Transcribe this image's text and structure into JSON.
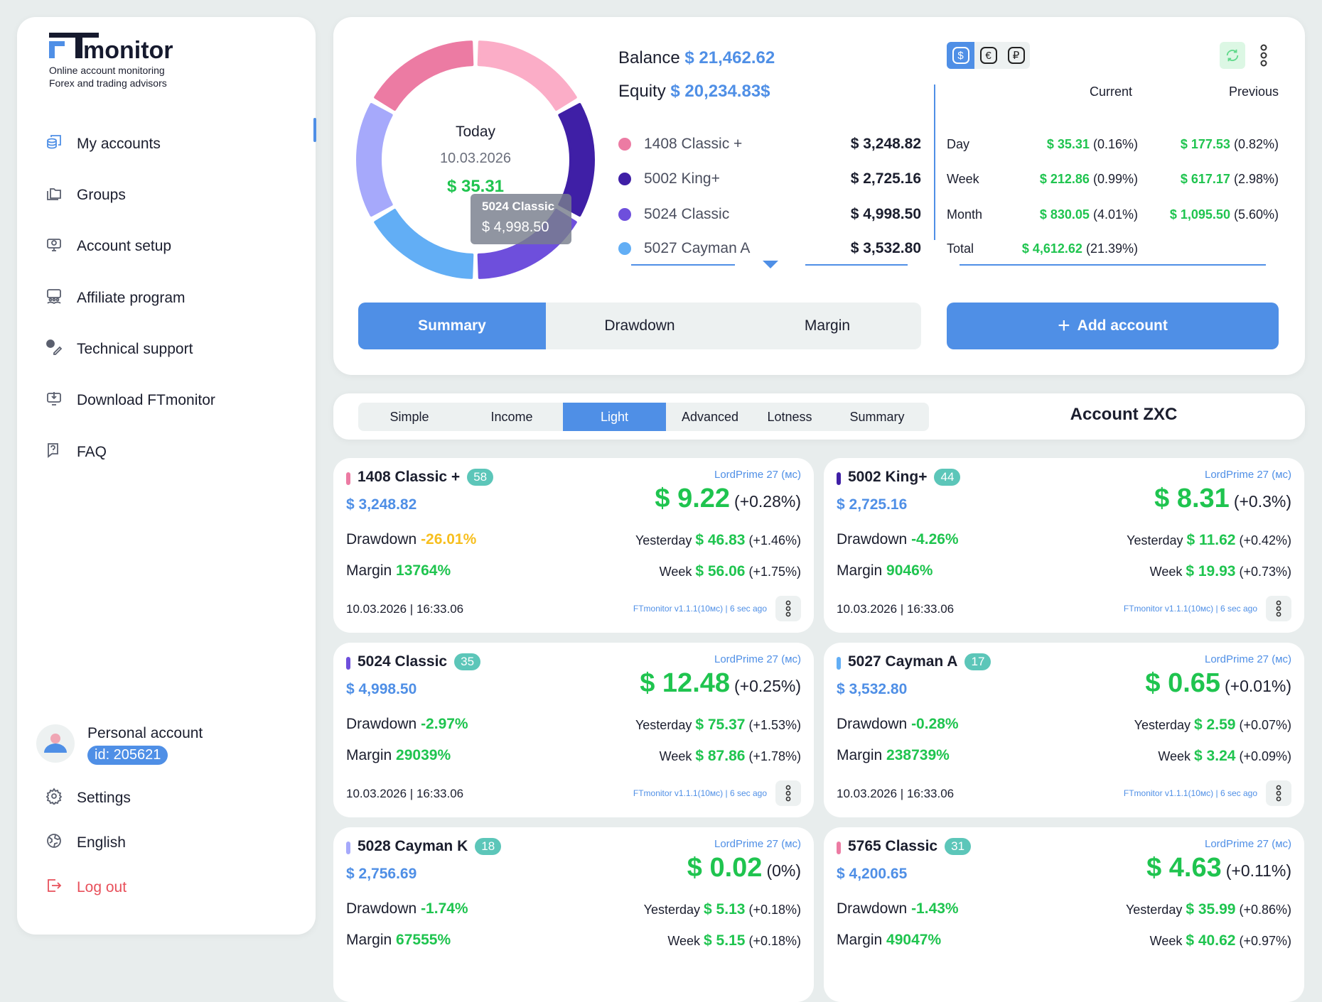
{
  "brand": {
    "name": "FTmonitor",
    "logo_text": "monitor",
    "tagline_1": "Online account monitoring",
    "tagline_2": "Forex and trading advisors"
  },
  "sidebar": {
    "items": [
      {
        "label": "My accounts",
        "icon": "accounts-icon",
        "active": true
      },
      {
        "label": "Groups",
        "icon": "folders-icon"
      },
      {
        "label": "Account setup",
        "icon": "monitor-gear-icon"
      },
      {
        "label": "Affiliate program",
        "icon": "people-icon"
      },
      {
        "label": "Technical support",
        "icon": "support-icon"
      },
      {
        "label": "Download FTmonitor",
        "icon": "download-icon"
      },
      {
        "label": "FAQ",
        "icon": "faq-icon"
      }
    ],
    "account": {
      "name": "Personal account",
      "id": "id: 205621"
    },
    "bottom": [
      {
        "label": "Settings",
        "icon": "gear-icon"
      },
      {
        "label": "English",
        "icon": "globe-icon"
      },
      {
        "label": "Log out",
        "icon": "logout-icon"
      }
    ]
  },
  "summary": {
    "center": {
      "label": "Today",
      "date": "10.03.2026",
      "value": "$ 35.31"
    },
    "donut_colors": [
      "#fbadc7",
      "#3f1fa6",
      "#6e4fdc",
      "#62aef5",
      "#a6a9fb",
      "#ec7ba3"
    ],
    "tooltip": {
      "name": "5024 Classic",
      "value": "$ 4,998.50"
    },
    "balance_label": "Balance",
    "balance": "$ 21,462.62",
    "equity_label": "Equity",
    "equity": "$ 20,234.83$",
    "legend": [
      {
        "name": "1408 Classic +",
        "value": "$ 3,248.82",
        "color": "#ec7ba3"
      },
      {
        "name": "5002 King+",
        "value": "$ 2,725.16",
        "color": "#3f1fa6"
      },
      {
        "name": "5024 Classic",
        "value": "$ 4,998.50",
        "color": "#6e4fdc"
      },
      {
        "name": "5027 Cayman A",
        "value": "$ 3,532.80",
        "color": "#62aef5"
      }
    ],
    "currencies": [
      "$",
      "€",
      "₽"
    ],
    "active_currency": "$",
    "table": {
      "headers": {
        "current": "Current",
        "previous": "Previous"
      },
      "rows": [
        {
          "label": "Day",
          "cur": "$ 35.31",
          "cur_pct": "(0.16%)",
          "prev": "$ 177.53",
          "prev_pct": "(0.82%)"
        },
        {
          "label": "Week",
          "cur": "$ 212.86",
          "cur_pct": "(0.99%)",
          "prev": "$ 617.17",
          "prev_pct": "(2.98%)"
        },
        {
          "label": "Month",
          "cur": "$ 830.05",
          "cur_pct": "(4.01%)",
          "prev": "$ 1,095.50",
          "prev_pct": "(5.60%)"
        },
        {
          "label": "Total",
          "cur": "$ 4,612.62",
          "cur_pct": "(21.39%)",
          "prev": "",
          "prev_pct": ""
        }
      ]
    },
    "segments": [
      "Summary",
      "Drawdown",
      "Margin"
    ],
    "active_segment": "Summary",
    "add_account": "Add account"
  },
  "view_tabs": {
    "items": [
      "Simple",
      "Income",
      "Light",
      "Advanced",
      "Lotness",
      "Summary"
    ],
    "active": "Light",
    "account_title": "Account ZXC"
  },
  "cards": [
    {
      "name": "1408 Classic +",
      "badge": "58",
      "color": "#ec7ba3",
      "balance": "$ 3,248.82",
      "server": "LordPrime 27 (мс)",
      "profit": "$ 9.22",
      "profit_pct": "(+0.28%)",
      "drawdown": "-26.01%",
      "drawdown_color": "#f7bf1f",
      "margin": "13764%",
      "yesterday": "$ 46.83",
      "yesterday_pct": "(+1.46%)",
      "week": "$ 56.06",
      "week_pct": "(+1.75%)",
      "datetime": "10.03.2026 | 16:33.06",
      "version": "FTmonitor v1.1.1(10мс) | 6 sec ago"
    },
    {
      "name": "5002 King+",
      "badge": "44",
      "color": "#3f1fa6",
      "balance": "$ 2,725.16",
      "server": "LordPrime 27 (мс)",
      "profit": "$ 8.31",
      "profit_pct": "(+0.3%)",
      "drawdown": "-4.26%",
      "drawdown_color": "#1fc44f",
      "margin": "9046%",
      "yesterday": "$ 11.62",
      "yesterday_pct": "(+0.42%)",
      "week": "$ 19.93",
      "week_pct": "(+0.73%)",
      "datetime": "10.03.2026 | 16:33.06",
      "version": "FTmonitor v1.1.1(10мс) | 6 sec ago"
    },
    {
      "name": "5024 Classic",
      "badge": "35",
      "color": "#6e4fdc",
      "balance": "$ 4,998.50",
      "server": "LordPrime 27 (мс)",
      "profit": "$ 12.48",
      "profit_pct": "(+0.25%)",
      "drawdown": "-2.97%",
      "drawdown_color": "#1fc44f",
      "margin": "29039%",
      "yesterday": "$ 75.37",
      "yesterday_pct": "(+1.53%)",
      "week": "$ 87.86",
      "week_pct": "(+1.78%)",
      "datetime": "10.03.2026 | 16:33.06",
      "version": "FTmonitor v1.1.1(10мс) | 6 sec ago"
    },
    {
      "name": "5027 Cayman A",
      "badge": "17",
      "color": "#62aef5",
      "balance": "$ 3,532.80",
      "server": "LordPrime 27 (мс)",
      "profit": "$ 0.65",
      "profit_pct": "(+0.01%)",
      "drawdown": "-0.28%",
      "drawdown_color": "#1fc44f",
      "margin": "238739%",
      "yesterday": "$ 2.59",
      "yesterday_pct": "(+0.07%)",
      "week": "$ 3.24",
      "week_pct": "(+0.09%)",
      "datetime": "10.03.2026 | 16:33.06",
      "version": "FTmonitor v1.1.1(10мс) | 6 sec ago"
    },
    {
      "name": "5028 Cayman K",
      "badge": "18",
      "color": "#a6a9fb",
      "balance": "$ 2,756.69",
      "server": "LordPrime 27 (мс)",
      "profit": "$ 0.02",
      "profit_pct": "(0%)",
      "drawdown": "-1.74%",
      "drawdown_color": "#1fc44f",
      "margin": "67555%",
      "yesterday": "$ 5.13",
      "yesterday_pct": "(+0.18%)",
      "week": "$ 5.15",
      "week_pct": "(+0.18%)"
    },
    {
      "name": "5765 Classic",
      "badge": "31",
      "color": "#ec7ba3",
      "balance": "$ 4,200.65",
      "server": "LordPrime 27 (мс)",
      "profit": "$ 4.63",
      "profit_pct": "(+0.11%)",
      "drawdown": "-1.43%",
      "drawdown_color": "#1fc44f",
      "margin": "49047%",
      "yesterday": "$ 35.99",
      "yesterday_pct": "(+0.86%)",
      "week": "$ 40.62",
      "week_pct": "(+0.97%)"
    }
  ],
  "labels": {
    "drawdown": "Drawdown",
    "margin": "Margin",
    "yesterday": "Yesterday",
    "week": "Week"
  },
  "colors": {
    "accent": "#4f8fe6",
    "positive": "#1fc44f",
    "warning": "#f7bf1f",
    "badge": "#5cc6b9",
    "logout": "#e8505b"
  }
}
